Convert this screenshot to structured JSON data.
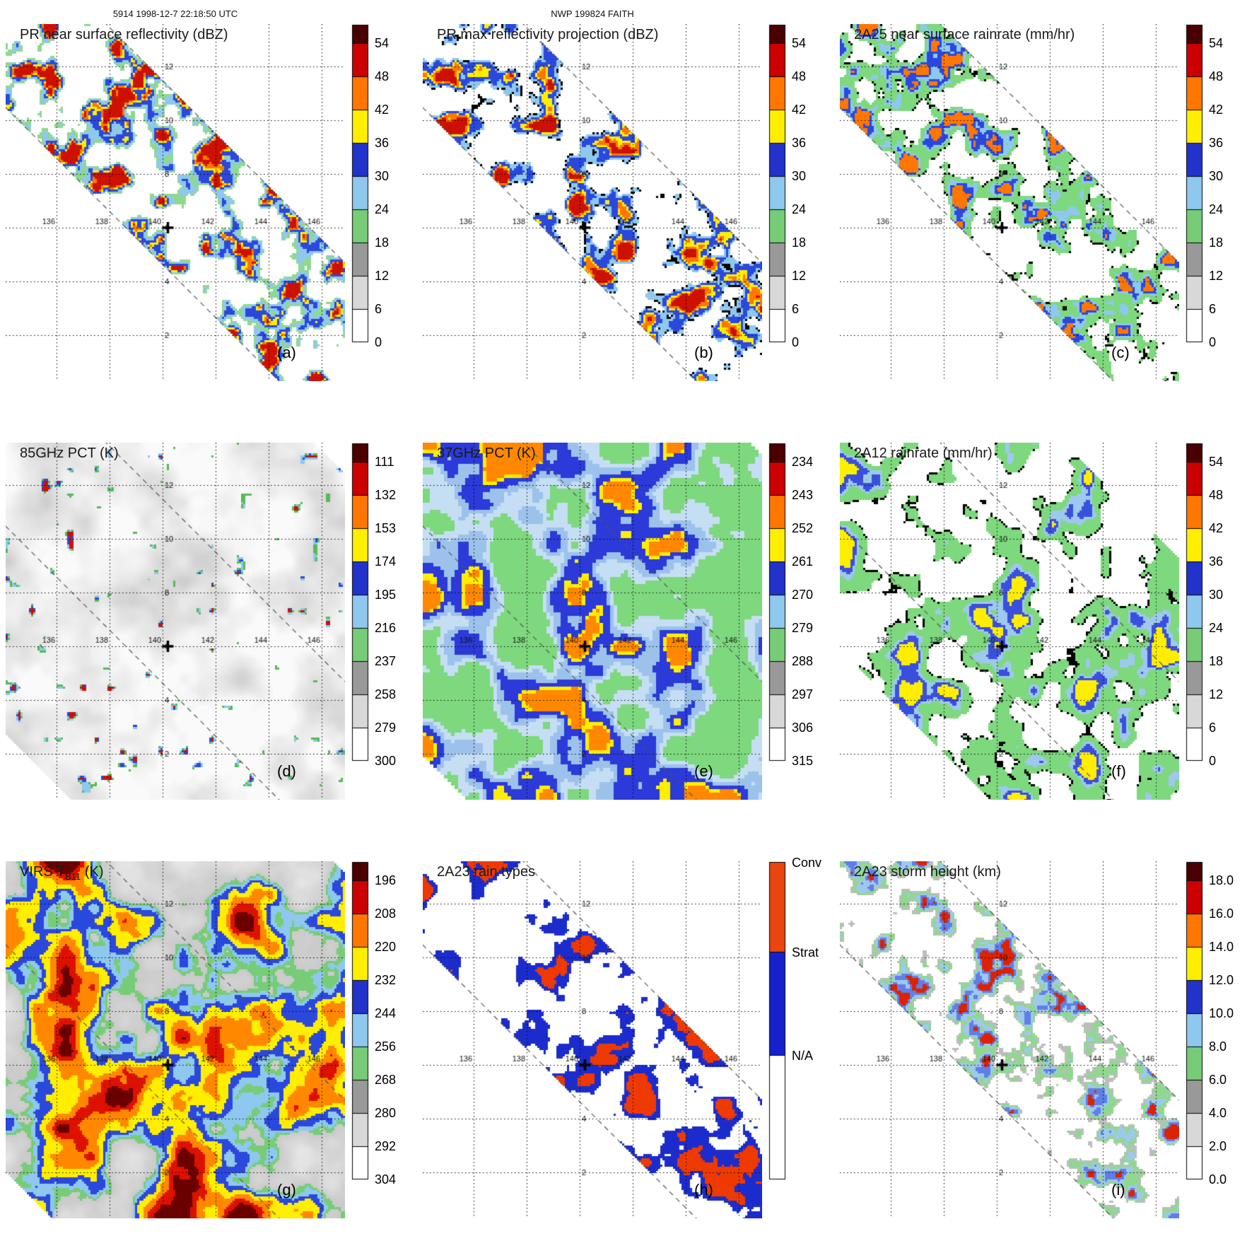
{
  "header": {
    "left": "5914 1998-12-7 22:18:50 UTC",
    "center": "NWP 199824 FAITH"
  },
  "chart_data": {
    "type": "heatmap",
    "layout": "3x3 satellite map panels with vertical colorbars",
    "geo": {
      "lon_ticks": [
        136,
        138,
        140,
        142,
        144,
        146
      ],
      "lat_ticks": [
        2,
        4,
        6,
        8,
        10,
        12
      ],
      "lon_range": [
        134.1,
        147.9
      ],
      "lat_range": [
        0.3,
        13.7
      ],
      "marker": {
        "lon": 140.2,
        "lat": 6.0,
        "symbol": "plus"
      }
    },
    "colorbar_colors_standard": [
      "#4a0000",
      "#cc0000",
      "#ff7700",
      "#ffee00",
      "#2233cc",
      "#8fc8ee",
      "#77cc77",
      "#999999",
      "#d8d8d8",
      "#ffffff"
    ],
    "panels": [
      {
        "letter": "(a)",
        "title_main": "PR near surface reflectivity (dBZ)",
        "title_sub": "",
        "title_rest": "",
        "colorbar": {
          "type": "standard",
          "ticks": [
            "54",
            "48",
            "42",
            "36",
            "30",
            "24",
            "18",
            "12",
            "6",
            "0"
          ]
        },
        "field": {
          "mode": "stops",
          "cell": 3,
          "halfwidth": 92,
          "freq": 0.032,
          "oct": 3,
          "seed": 11,
          "stops": [
            [
              0.535,
              "#8fd88f"
            ],
            [
              0.568,
              "#8fc8ee"
            ],
            [
              0.612,
              "#2b48dd"
            ],
            [
              0.664,
              "#ffee00"
            ],
            [
              0.687,
              "#ff7700"
            ],
            [
              0.712,
              "#cc1100"
            ]
          ]
        }
      },
      {
        "letter": "(b)",
        "title_main": "PR max reflectivity projection (dBZ)",
        "title_sub": "",
        "title_rest": "",
        "colorbar": {
          "type": "standard",
          "ticks": [
            "54",
            "48",
            "42",
            "36",
            "30",
            "24",
            "18",
            "12",
            "6",
            "0"
          ]
        },
        "field": {
          "mode": "stops",
          "cell": 3,
          "halfwidth": 92,
          "freq": 0.028,
          "oct": 3,
          "seed": 22,
          "stops": [
            [
              0.492,
              "#000000"
            ],
            [
              0.506,
              "#8fc8ee"
            ],
            [
              0.552,
              "#2b48dd"
            ],
            [
              0.615,
              "#ffee00"
            ],
            [
              0.648,
              "#ff7700"
            ],
            [
              0.69,
              "#cc1100"
            ]
          ]
        }
      },
      {
        "letter": "(c)",
        "title_main": "2A25 near surface rainrate (mm/hr)",
        "title_sub": "",
        "title_rest": "",
        "colorbar": {
          "type": "standard",
          "ticks": [
            "54",
            "48",
            "42",
            "36",
            "30",
            "24",
            "18",
            "12",
            "6",
            "0"
          ]
        },
        "field": {
          "mode": "stops",
          "cell": 3,
          "halfwidth": 92,
          "freq": 0.03,
          "oct": 3,
          "seed": 33,
          "stops": [
            [
              0.5,
              "#000000"
            ],
            [
              0.513,
              "#7ed87e"
            ],
            [
              0.61,
              "#8fc8ee"
            ],
            [
              0.655,
              "#2b48dd"
            ],
            [
              0.705,
              "#ff7700"
            ]
          ]
        }
      },
      {
        "letter": "(d)",
        "title_main": "85GHz PCT (K)",
        "title_sub": "",
        "title_rest": "",
        "colorbar": {
          "type": "standard",
          "ticks": [
            "111",
            "132",
            "153",
            "174",
            "195",
            "216",
            "237",
            "258",
            "279",
            "300"
          ]
        },
        "field": {
          "mode": "gray-speck",
          "cell": 3,
          "halfwidth": 300,
          "freq": 0.018,
          "oct": 3,
          "seed": 44
        }
      },
      {
        "letter": "(e)",
        "title_main": "37GHz PCT (K)",
        "title_sub": "",
        "title_rest": "",
        "colorbar": {
          "type": "standard",
          "ticks": [
            "234",
            "243",
            "252",
            "261",
            "270",
            "279",
            "288",
            "297",
            "306",
            "315"
          ]
        },
        "field": {
          "mode": "stops",
          "cell": 5,
          "halfwidth": 320,
          "freq": 0.014,
          "oct": 3,
          "seed": 55,
          "base": "#7ed87e",
          "stops": [
            [
              0.47,
              "#c6def4"
            ],
            [
              0.545,
              "#9cc2ec"
            ],
            [
              0.612,
              "#2b3ad8"
            ],
            [
              0.698,
              "#ffee00"
            ],
            [
              0.728,
              "#ff8800"
            ]
          ]
        }
      },
      {
        "letter": "(f)",
        "title_main": "2A12 rainrate (mm/hr)",
        "title_sub": "",
        "title_rest": "",
        "colorbar": {
          "type": "standard",
          "ticks": [
            "54",
            "48",
            "42",
            "36",
            "30",
            "24",
            "18",
            "12",
            "6",
            "0"
          ]
        },
        "field": {
          "mode": "stops",
          "cell": 3,
          "halfwidth": 215,
          "freq": 0.02,
          "oct": 3,
          "seed": 66,
          "stops": [
            [
              0.487,
              "#000000"
            ],
            [
              0.5,
              "#7ed87e"
            ],
            [
              0.625,
              "#9fc8ee"
            ],
            [
              0.668,
              "#3a50dd"
            ],
            [
              0.725,
              "#ffee00"
            ]
          ]
        }
      },
      {
        "letter": "(g)",
        "title_main": "VIRS T",
        "title_sub": "B11",
        "title_rest": " (K)",
        "colorbar": {
          "type": "standard",
          "ticks": [
            "196",
            "208",
            "220",
            "232",
            "244",
            "256",
            "268",
            "280",
            "292",
            "304"
          ]
        },
        "field": {
          "mode": "virs",
          "cell": 3,
          "halfwidth": 320,
          "freq": 0.012,
          "oct": 4,
          "seed": 77,
          "stops": [
            [
              0.44,
              "#77cc77"
            ],
            [
              0.47,
              "#8fc8ee"
            ],
            [
              0.51,
              "#2b48dd"
            ],
            [
              0.565,
              "#ffee00"
            ],
            [
              0.635,
              "#ff8800"
            ],
            [
              0.71,
              "#dd1100"
            ],
            [
              0.79,
              "#6a0000"
            ]
          ]
        }
      },
      {
        "letter": "(h)",
        "title_main": "2A23 rain types",
        "title_sub": "",
        "title_rest": "",
        "colorbar": {
          "type": "raintype",
          "labels": [
            "Conv",
            "Strat",
            "N/A"
          ],
          "colors": [
            "#e8450f",
            "#1522cc",
            "#ffffff"
          ]
        },
        "field": {
          "mode": "stops",
          "cell": 3,
          "halfwidth": 92,
          "freq": 0.026,
          "oct": 3,
          "seed": 88,
          "stops": [
            [
              0.53,
              "#1c2ccc"
            ],
            [
              0.66,
              "#ee3a00"
            ]
          ]
        }
      },
      {
        "letter": "(i)",
        "title_main": "2A23 storm height (km)",
        "title_sub": "",
        "title_rest": "",
        "colorbar": {
          "type": "standard",
          "ticks": [
            "18.0",
            "16.0",
            "14.0",
            "12.0",
            "10.0",
            "8.0",
            "6.0",
            "4.0",
            "2.0",
            "0.0"
          ]
        },
        "field": {
          "mode": "stops",
          "cell": 3,
          "halfwidth": 92,
          "freq": 0.034,
          "oct": 3,
          "seed": 99,
          "stops": [
            [
              0.532,
              "#bdbdbd"
            ],
            [
              0.565,
              "#8fd88f"
            ],
            [
              0.625,
              "#9fc8ee"
            ],
            [
              0.678,
              "#5f7fe8"
            ],
            [
              0.735,
              "#dd2200"
            ]
          ]
        }
      }
    ]
  }
}
